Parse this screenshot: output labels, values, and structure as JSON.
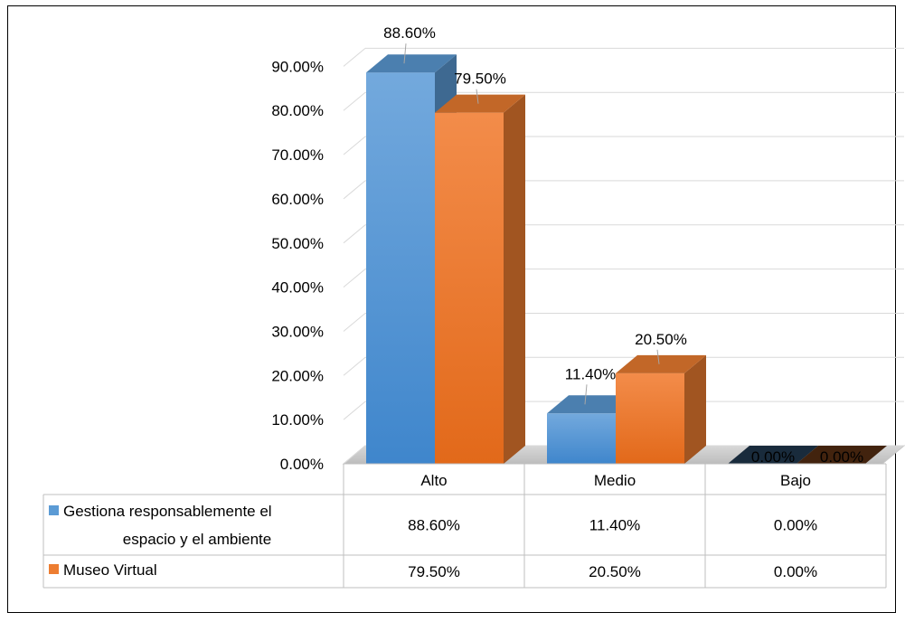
{
  "chart_data": {
    "type": "bar",
    "style": "3d-clustered-column-with-data-table",
    "categories": [
      "Alto",
      "Medio",
      "Bajo"
    ],
    "series": [
      {
        "name": "Gestiona responsablemente el espacio y el ambiente",
        "values": [
          88.6,
          11.4,
          0.0
        ],
        "labels": [
          "88.60%",
          "11.40%",
          "0.00%"
        ],
        "color": "#5B9BD5"
      },
      {
        "name": "Museo Virtual",
        "values": [
          79.5,
          20.5,
          0.0
        ],
        "labels": [
          "79.50%",
          "20.50%",
          "0.00%"
        ],
        "color": "#ED7D31"
      }
    ],
    "ylim": [
      0,
      90
    ],
    "yticks": [
      "0.00%",
      "10.00%",
      "20.00%",
      "30.00%",
      "40.00%",
      "50.00%",
      "60.00%",
      "70.00%",
      "80.00%",
      "90.00%"
    ],
    "grid": true,
    "legend": "data-table"
  }
}
